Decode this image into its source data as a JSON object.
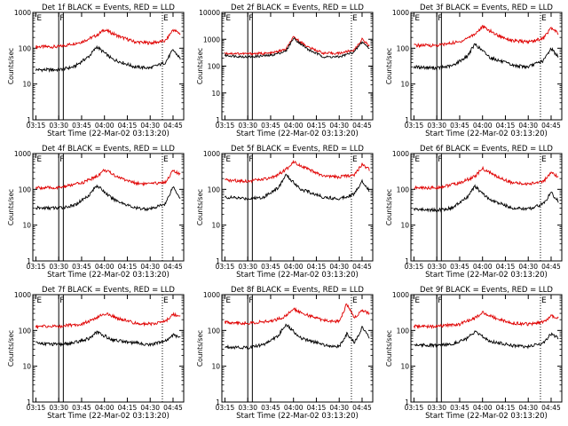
{
  "figure": {
    "xlabel": "Start Time (22-Mar-02 03:13:20)",
    "ylabel": "Counts/sec"
  },
  "chart_data": [
    {
      "type": "line",
      "title": "Det 1f BLACK = Events, RED = LLD",
      "ylim": [
        1,
        1000
      ],
      "yscale": "log",
      "x_ticks": [
        "03:15",
        "03:30",
        "03:45",
        "04:00",
        "04:15",
        "04:30",
        "04:45"
      ],
      "y_ticks": [
        "1",
        "10",
        "100",
        "1000"
      ],
      "markers": [
        {
          "label": "E",
          "t": "03:15"
        },
        {
          "label": "F",
          "t": "03:30"
        },
        {
          "label": "E",
          "t": "04:45"
        }
      ],
      "series": [
        {
          "name": "LLD",
          "color": "#e00000",
          "x": [
            "03:15",
            "03:30",
            "03:45",
            "03:55",
            "04:00",
            "04:10",
            "04:20",
            "04:30",
            "04:40",
            "04:45",
            "04:50"
          ],
          "values": [
            110,
            110,
            150,
            230,
            330,
            210,
            150,
            140,
            160,
            330,
            250
          ]
        },
        {
          "name": "Events",
          "color": "#000000",
          "x": [
            "03:15",
            "03:30",
            "03:40",
            "03:50",
            "03:55",
            "04:05",
            "04:20",
            "04:30",
            "04:40",
            "04:45",
            "04:50"
          ],
          "values": [
            25,
            25,
            30,
            60,
            110,
            50,
            30,
            28,
            40,
            90,
            50
          ]
        }
      ]
    },
    {
      "type": "line",
      "title": "Det 2f BLACK = Events, RED = LLD",
      "ylim": [
        1,
        10000
      ],
      "yscale": "log",
      "x_ticks": [
        "03:15",
        "03:30",
        "03:45",
        "04:00",
        "04:15",
        "04:30",
        "04:45"
      ],
      "y_ticks": [
        "1",
        "10",
        "100",
        "1000",
        "10000"
      ],
      "markers": [
        {
          "label": "E",
          "t": "03:15"
        },
        {
          "label": "F",
          "t": "03:30"
        },
        {
          "label": "E",
          "t": "04:45"
        }
      ],
      "series": [
        {
          "name": "LLD",
          "color": "#e00000",
          "x": [
            "03:15",
            "03:30",
            "03:45",
            "03:55",
            "04:00",
            "04:10",
            "04:20",
            "04:30",
            "04:40",
            "04:45",
            "04:50"
          ],
          "values": [
            300,
            290,
            300,
            420,
            1200,
            500,
            300,
            300,
            400,
            1000,
            550
          ]
        },
        {
          "name": "Events",
          "color": "#000000",
          "x": [
            "03:15",
            "03:30",
            "03:45",
            "03:55",
            "04:00",
            "04:10",
            "04:20",
            "04:30",
            "04:40",
            "04:45",
            "04:50"
          ],
          "values": [
            250,
            220,
            250,
            360,
            1100,
            400,
            220,
            220,
            340,
            800,
            450
          ]
        }
      ]
    },
    {
      "type": "line",
      "title": "Det 3f BLACK = Events, RED = LLD",
      "ylim": [
        1,
        1000
      ],
      "yscale": "log",
      "x_ticks": [
        "03:15",
        "03:30",
        "03:45",
        "04:00",
        "04:15",
        "04:30",
        "04:45"
      ],
      "y_ticks": [
        "1",
        "10",
        "100",
        "1000"
      ],
      "markers": [
        {
          "label": "E",
          "t": "03:15"
        },
        {
          "label": "F",
          "t": "03:30"
        },
        {
          "label": "E",
          "t": "04:45"
        }
      ],
      "series": [
        {
          "name": "LLD",
          "color": "#e00000",
          "x": [
            "03:15",
            "03:30",
            "03:45",
            "03:55",
            "04:00",
            "04:10",
            "04:20",
            "04:30",
            "04:40",
            "04:45",
            "04:50"
          ],
          "values": [
            120,
            120,
            150,
            250,
            400,
            230,
            160,
            150,
            190,
            370,
            250
          ]
        },
        {
          "name": "Events",
          "color": "#000000",
          "x": [
            "03:15",
            "03:30",
            "03:40",
            "03:50",
            "03:55",
            "04:05",
            "04:20",
            "04:30",
            "04:40",
            "04:45",
            "04:50"
          ],
          "values": [
            30,
            28,
            32,
            60,
            130,
            55,
            33,
            30,
            45,
            100,
            55
          ]
        }
      ]
    },
    {
      "type": "line",
      "title": "Det 4f BLACK = Events, RED = LLD",
      "ylim": [
        1,
        1000
      ],
      "yscale": "log",
      "x_ticks": [
        "03:15",
        "03:30",
        "03:45",
        "04:00",
        "04:15",
        "04:30",
        "04:45"
      ],
      "y_ticks": [
        "1",
        "10",
        "100",
        "1000"
      ],
      "markers": [
        {
          "label": "E",
          "t": "03:15"
        },
        {
          "label": "F",
          "t": "03:30"
        },
        {
          "label": "E",
          "t": "04:45"
        }
      ],
      "series": [
        {
          "name": "LLD",
          "color": "#e00000",
          "x": [
            "03:15",
            "03:30",
            "03:45",
            "03:55",
            "04:00",
            "04:10",
            "04:20",
            "04:30",
            "04:40",
            "04:45",
            "04:50"
          ],
          "values": [
            110,
            110,
            150,
            230,
            350,
            210,
            150,
            140,
            160,
            330,
            250
          ]
        },
        {
          "name": "Events",
          "color": "#000000",
          "x": [
            "03:15",
            "03:30",
            "03:40",
            "03:50",
            "03:55",
            "04:05",
            "04:20",
            "04:30",
            "04:40",
            "04:45",
            "04:50"
          ],
          "values": [
            30,
            30,
            35,
            70,
            130,
            55,
            30,
            28,
            40,
            120,
            55
          ]
        }
      ]
    },
    {
      "type": "line",
      "title": "Det 5f BLACK = Events, RED = LLD",
      "ylim": [
        1,
        1000
      ],
      "yscale": "log",
      "x_ticks": [
        "03:15",
        "03:30",
        "03:45",
        "04:00",
        "04:15",
        "04:30",
        "04:45"
      ],
      "y_ticks": [
        "1",
        "10",
        "100",
        "1000"
      ],
      "markers": [
        {
          "label": "E",
          "t": "03:15"
        },
        {
          "label": "F",
          "t": "03:30"
        },
        {
          "label": "E",
          "t": "04:45"
        }
      ],
      "series": [
        {
          "name": "LLD",
          "color": "#e00000",
          "x": [
            "03:15",
            "03:30",
            "03:45",
            "03:55",
            "04:00",
            "04:10",
            "04:20",
            "04:30",
            "04:40",
            "04:45",
            "04:50"
          ],
          "values": [
            180,
            170,
            200,
            350,
            600,
            350,
            230,
            220,
            260,
            500,
            350
          ]
        },
        {
          "name": "Events",
          "color": "#000000",
          "x": [
            "03:15",
            "03:30",
            "03:40",
            "03:50",
            "03:55",
            "04:05",
            "04:20",
            "04:30",
            "04:40",
            "04:45",
            "04:50"
          ],
          "values": [
            60,
            55,
            60,
            110,
            250,
            100,
            60,
            55,
            75,
            170,
            90
          ]
        }
      ]
    },
    {
      "type": "line",
      "title": "Det 6f BLACK = Events, RED = LLD",
      "ylim": [
        1,
        1000
      ],
      "yscale": "log",
      "x_ticks": [
        "03:15",
        "03:30",
        "03:45",
        "04:00",
        "04:15",
        "04:30",
        "04:45"
      ],
      "y_ticks": [
        "1",
        "10",
        "100",
        "1000"
      ],
      "markers": [
        {
          "label": "E",
          "t": "03:15"
        },
        {
          "label": "F",
          "t": "03:30"
        },
        {
          "label": "E",
          "t": "04:45"
        }
      ],
      "series": [
        {
          "name": "LLD",
          "color": "#e00000",
          "x": [
            "03:15",
            "03:30",
            "03:45",
            "03:55",
            "04:00",
            "04:10",
            "04:20",
            "04:30",
            "04:40",
            "04:45",
            "04:50"
          ],
          "values": [
            110,
            110,
            150,
            230,
            380,
            220,
            150,
            140,
            170,
            280,
            220
          ]
        },
        {
          "name": "Events",
          "color": "#000000",
          "x": [
            "03:15",
            "03:30",
            "03:40",
            "03:50",
            "03:55",
            "04:05",
            "04:20",
            "04:30",
            "04:40",
            "04:45",
            "04:50"
          ],
          "values": [
            28,
            26,
            30,
            60,
            120,
            50,
            30,
            28,
            40,
            80,
            45
          ]
        }
      ]
    },
    {
      "type": "line",
      "title": "Det 7f BLACK = Events, RED = LLD",
      "ylim": [
        1,
        1000
      ],
      "yscale": "log",
      "x_ticks": [
        "03:15",
        "03:30",
        "03:45",
        "04:00",
        "04:15",
        "04:30",
        "04:45"
      ],
      "y_ticks": [
        "1",
        "10",
        "100",
        "1000"
      ],
      "markers": [
        {
          "label": "E",
          "t": "03:15"
        },
        {
          "label": "F",
          "t": "03:30"
        },
        {
          "label": "E",
          "t": "04:45"
        }
      ],
      "series": [
        {
          "name": "LLD",
          "color": "#e00000",
          "x": [
            "03:15",
            "03:30",
            "03:45",
            "03:55",
            "04:00",
            "04:10",
            "04:20",
            "04:30",
            "04:40",
            "04:45",
            "04:50"
          ],
          "values": [
            130,
            130,
            150,
            220,
            300,
            210,
            160,
            150,
            180,
            280,
            260
          ]
        },
        {
          "name": "Events",
          "color": "#000000",
          "x": [
            "03:15",
            "03:30",
            "03:40",
            "03:50",
            "03:55",
            "04:05",
            "04:20",
            "04:30",
            "04:40",
            "04:45",
            "04:50"
          ],
          "values": [
            45,
            40,
            45,
            60,
            90,
            55,
            45,
            40,
            50,
            75,
            65
          ]
        }
      ]
    },
    {
      "type": "line",
      "title": "Det 8f BLACK = Events, RED = LLD",
      "ylim": [
        1,
        1000
      ],
      "yscale": "log",
      "x_ticks": [
        "03:15",
        "03:30",
        "03:45",
        "04:00",
        "04:15",
        "04:30",
        "04:45"
      ],
      "y_ticks": [
        "1",
        "10",
        "100",
        "1000"
      ],
      "markers": [
        {
          "label": "E",
          "t": "03:15"
        },
        {
          "label": "F",
          "t": "03:30"
        },
        {
          "label": "E",
          "t": "04:45"
        }
      ],
      "series": [
        {
          "name": "LLD",
          "color": "#e00000",
          "x": [
            "03:15",
            "03:30",
            "03:45",
            "03:55",
            "04:00",
            "04:10",
            "04:20",
            "04:30",
            "04:35",
            "04:40",
            "04:45",
            "04:50"
          ],
          "values": [
            170,
            160,
            180,
            250,
            400,
            260,
            190,
            180,
            550,
            220,
            380,
            280
          ]
        },
        {
          "name": "Events",
          "color": "#000000",
          "x": [
            "03:15",
            "03:30",
            "03:40",
            "03:50",
            "03:55",
            "04:05",
            "04:20",
            "04:30",
            "04:35",
            "04:40",
            "04:45",
            "04:50"
          ],
          "values": [
            35,
            33,
            40,
            70,
            150,
            60,
            40,
            35,
            80,
            45,
            120,
            60
          ]
        }
      ]
    },
    {
      "type": "line",
      "title": "Det 9f BLACK = Events, RED = LLD",
      "ylim": [
        1,
        1000
      ],
      "yscale": "log",
      "x_ticks": [
        "03:15",
        "03:30",
        "03:45",
        "04:00",
        "04:15",
        "04:30",
        "04:45"
      ],
      "y_ticks": [
        "1",
        "10",
        "100",
        "1000"
      ],
      "markers": [
        {
          "label": "E",
          "t": "03:15"
        },
        {
          "label": "F",
          "t": "03:30"
        },
        {
          "label": "E",
          "t": "04:45"
        }
      ],
      "series": [
        {
          "name": "LLD",
          "color": "#e00000",
          "x": [
            "03:15",
            "03:30",
            "03:45",
            "03:55",
            "04:00",
            "04:10",
            "04:20",
            "04:30",
            "04:40",
            "04:45",
            "04:50"
          ],
          "values": [
            130,
            130,
            150,
            220,
            320,
            210,
            160,
            150,
            170,
            260,
            230
          ]
        },
        {
          "name": "Events",
          "color": "#000000",
          "x": [
            "03:15",
            "03:30",
            "03:40",
            "03:50",
            "03:55",
            "04:05",
            "04:20",
            "04:30",
            "04:40",
            "04:45",
            "04:50"
          ],
          "values": [
            40,
            38,
            42,
            60,
            90,
            50,
            38,
            35,
            45,
            80,
            60
          ]
        }
      ]
    }
  ]
}
